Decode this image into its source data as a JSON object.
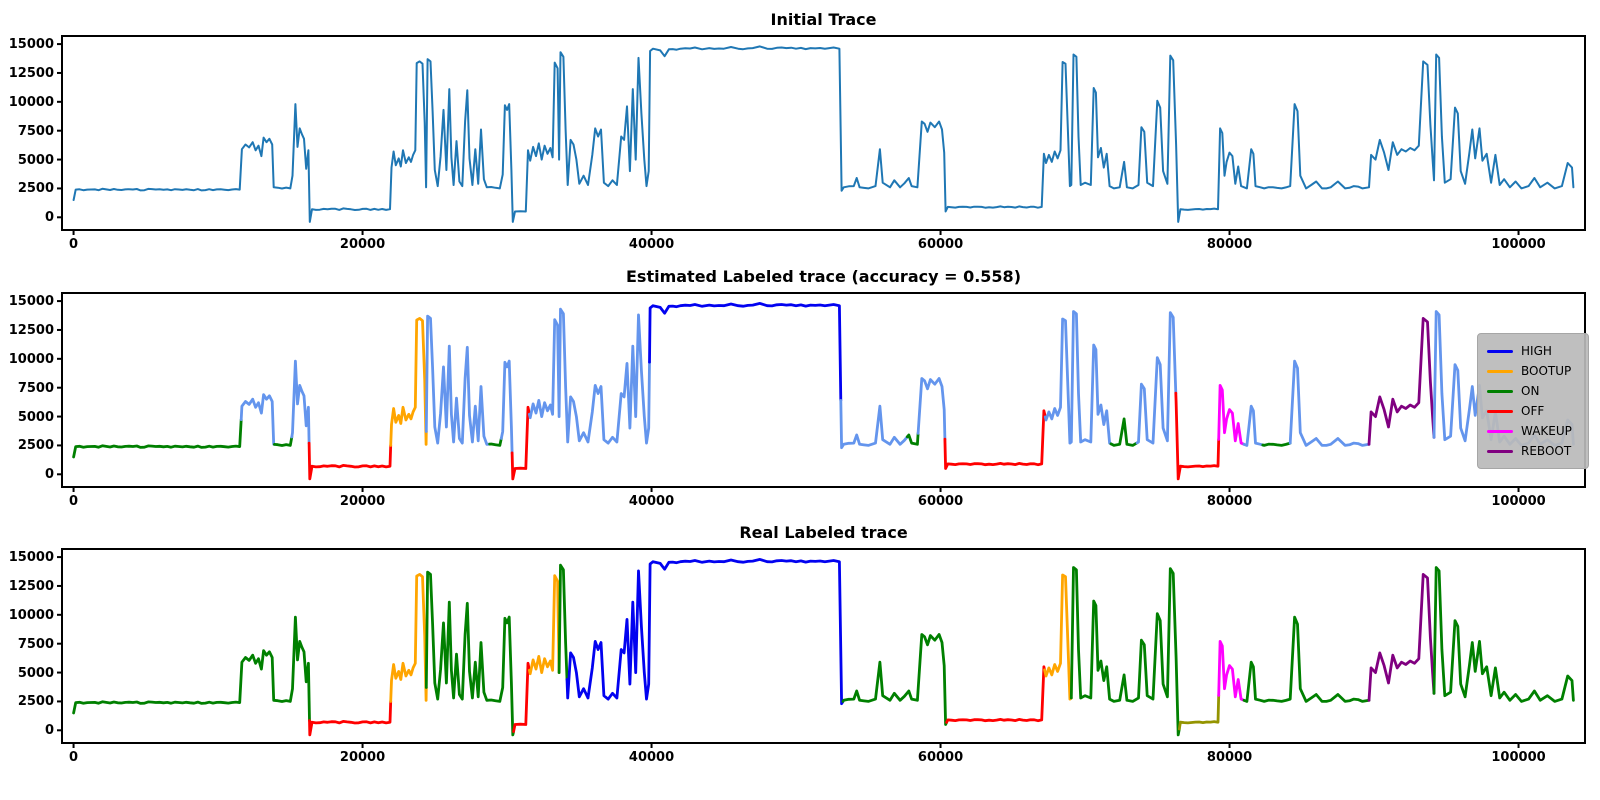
{
  "figure": {
    "background": "#ffffff"
  },
  "chart_data": {
    "type": "line",
    "plots": [
      {
        "title": "Initial Trace",
        "mode": "single",
        "color": "#1f77b4",
        "line_width": 2.0
      },
      {
        "title": "Estimated Labeled trace (accuracy = 0.558)",
        "mode": "segments",
        "line_width": 2.8,
        "accuracy": 0.558,
        "segments": [
          [
            0,
            11600,
            "ON"
          ],
          [
            11600,
            13900,
            "UNLABELED"
          ],
          [
            13900,
            15100,
            "ON"
          ],
          [
            15100,
            16300,
            "UNLABELED"
          ],
          [
            16300,
            21950,
            "OFF"
          ],
          [
            21950,
            24410,
            "BOOTUP"
          ],
          [
            24410,
            28800,
            "UNLABELED"
          ],
          [
            28800,
            29600,
            "ON"
          ],
          [
            29600,
            30350,
            "UNLABELED"
          ],
          [
            30350,
            31550,
            "OFF"
          ],
          [
            31550,
            39855,
            "UNLABELED"
          ],
          [
            39855,
            53100,
            "HIGH"
          ],
          [
            53100,
            57700,
            "UNLABELED"
          ],
          [
            57700,
            58450,
            "ON"
          ],
          [
            58450,
            60300,
            "UNLABELED"
          ],
          [
            60300,
            67250,
            "OFF"
          ],
          [
            67250,
            71800,
            "UNLABELED"
          ],
          [
            71800,
            73600,
            "ON"
          ],
          [
            73600,
            76280,
            "UNLABELED"
          ],
          [
            76280,
            79250,
            "OFF"
          ],
          [
            79250,
            81000,
            "WAKEUP"
          ],
          [
            81000,
            82300,
            "UNLABELED"
          ],
          [
            82300,
            84200,
            "ON"
          ],
          [
            84200,
            89650,
            "UNLABELED"
          ],
          [
            89650,
            94150,
            "REBOOT"
          ],
          [
            94150,
            103800,
            "UNLABELED"
          ]
        ]
      },
      {
        "title": "Real Labeled trace",
        "mode": "segments",
        "line_width": 2.8,
        "segments": [
          [
            0,
            16330,
            "ON"
          ],
          [
            16330,
            21950,
            "OFF"
          ],
          [
            21950,
            24410,
            "BOOTUP"
          ],
          [
            24410,
            30450,
            "ON"
          ],
          [
            30450,
            31550,
            "OFF"
          ],
          [
            31550,
            33600,
            "BOOTUP"
          ],
          [
            33600,
            34150,
            "ON"
          ],
          [
            34150,
            53250,
            "HIGH"
          ],
          [
            53250,
            60420,
            "ON"
          ],
          [
            60420,
            67200,
            "OFF"
          ],
          [
            67200,
            69050,
            "BOOTUP"
          ],
          [
            69050,
            76520,
            "ON"
          ],
          [
            76520,
            79250,
            "OTHER"
          ],
          [
            79250,
            81000,
            "WAKEUP"
          ],
          [
            81000,
            89650,
            "ON"
          ],
          [
            89650,
            94150,
            "REBOOT"
          ],
          [
            94150,
            103800,
            "ON"
          ]
        ]
      }
    ],
    "label_colors": {
      "HIGH": "#0202f0",
      "BOOTUP": "#ffa500",
      "ON": "#008000",
      "OFF": "#ff0000",
      "WAKEUP": "#ff00ff",
      "REBOOT": "#800080",
      "UNLABELED": "#6495ed",
      "OTHER": "#949400"
    },
    "legend": {
      "entries": [
        "HIGH",
        "BOOTUP",
        "ON",
        "OFF",
        "WAKEUP",
        "REBOOT"
      ],
      "position": "right of middle plot"
    },
    "xlim": [
      -800,
      104600
    ],
    "ylim": [
      -1100,
      15700
    ],
    "x_ticks": [
      0,
      20000,
      40000,
      60000,
      80000,
      100000
    ],
    "y_ticks": [
      0,
      2500,
      5000,
      7500,
      10000,
      12500,
      15000
    ],
    "grid": false,
    "noise": {
      "amplitude": 70,
      "step": 260,
      "max_edge": 1300
    },
    "waveform": [
      [
        0,
        1500
      ],
      [
        150,
        2400
      ],
      [
        11500,
        2400
      ],
      [
        11650,
        5900
      ],
      [
        11900,
        6300
      ],
      [
        12150,
        6050
      ],
      [
        12400,
        6500
      ],
      [
        12600,
        5800
      ],
      [
        12800,
        6200
      ],
      [
        13000,
        5300
      ],
      [
        13150,
        6900
      ],
      [
        13350,
        6500
      ],
      [
        13550,
        6800
      ],
      [
        13750,
        6300
      ],
      [
        13850,
        2600
      ],
      [
        15000,
        2500
      ],
      [
        15150,
        3600
      ],
      [
        15350,
        9800
      ],
      [
        15500,
        6100
      ],
      [
        15650,
        7700
      ],
      [
        15800,
        7200
      ],
      [
        15950,
        6800
      ],
      [
        16100,
        4200
      ],
      [
        16250,
        5800
      ],
      [
        16350,
        -400
      ],
      [
        16500,
        700
      ],
      [
        21900,
        700
      ],
      [
        22000,
        4300
      ],
      [
        22150,
        5700
      ],
      [
        22300,
        4500
      ],
      [
        22500,
        5100
      ],
      [
        22650,
        4400
      ],
      [
        22800,
        5800
      ],
      [
        23000,
        4700
      ],
      [
        23200,
        5200
      ],
      [
        23350,
        4800
      ],
      [
        23500,
        5400
      ],
      [
        23650,
        5800
      ],
      [
        23750,
        13350
      ],
      [
        23950,
        13500
      ],
      [
        24150,
        13300
      ],
      [
        24300,
        8200
      ],
      [
        24400,
        2600
      ],
      [
        24500,
        13700
      ],
      [
        24700,
        13500
      ],
      [
        24850,
        9200
      ],
      [
        25000,
        4100
      ],
      [
        25200,
        2700
      ],
      [
        25400,
        5300
      ],
      [
        25600,
        9300
      ],
      [
        25800,
        4100
      ],
      [
        26000,
        11100
      ],
      [
        26150,
        5200
      ],
      [
        26300,
        2800
      ],
      [
        26500,
        6600
      ],
      [
        26700,
        3100
      ],
      [
        26900,
        2700
      ],
      [
        27100,
        8300
      ],
      [
        27250,
        11000
      ],
      [
        27400,
        5100
      ],
      [
        27600,
        2800
      ],
      [
        27800,
        5900
      ],
      [
        28000,
        2900
      ],
      [
        28200,
        7600
      ],
      [
        28400,
        3300
      ],
      [
        28600,
        2600
      ],
      [
        29500,
        2500
      ],
      [
        29700,
        3700
      ],
      [
        29850,
        9700
      ],
      [
        30000,
        9300
      ],
      [
        30150,
        9800
      ],
      [
        30300,
        4100
      ],
      [
        30400,
        -400
      ],
      [
        30550,
        500
      ],
      [
        31300,
        500
      ],
      [
        31450,
        5800
      ],
      [
        31600,
        4900
      ],
      [
        31800,
        6100
      ],
      [
        32000,
        5300
      ],
      [
        32200,
        6400
      ],
      [
        32400,
        5000
      ],
      [
        32600,
        6200
      ],
      [
        32800,
        5500
      ],
      [
        33000,
        6000
      ],
      [
        33150,
        5200
      ],
      [
        33300,
        13400
      ],
      [
        33500,
        12900
      ],
      [
        33600,
        5000
      ],
      [
        33700,
        14300
      ],
      [
        33900,
        13900
      ],
      [
        34050,
        7600
      ],
      [
        34200,
        2800
      ],
      [
        34400,
        6700
      ],
      [
        34600,
        6300
      ],
      [
        34800,
        5000
      ],
      [
        35000,
        2900
      ],
      [
        35300,
        3600
      ],
      [
        35600,
        2800
      ],
      [
        35900,
        5400
      ],
      [
        36100,
        7700
      ],
      [
        36300,
        7000
      ],
      [
        36500,
        7600
      ],
      [
        36700,
        3000
      ],
      [
        37000,
        2700
      ],
      [
        37300,
        3200
      ],
      [
        37600,
        2800
      ],
      [
        37900,
        7000
      ],
      [
        38100,
        6700
      ],
      [
        38300,
        9600
      ],
      [
        38500,
        4000
      ],
      [
        38700,
        11100
      ],
      [
        38900,
        5000
      ],
      [
        39100,
        13800
      ],
      [
        39300,
        9000
      ],
      [
        39500,
        5000
      ],
      [
        39650,
        2700
      ],
      [
        39800,
        4000
      ],
      [
        39900,
        14400
      ],
      [
        40100,
        14600
      ],
      [
        40600,
        14450
      ],
      [
        40900,
        13950
      ],
      [
        41200,
        14550
      ],
      [
        42000,
        14600
      ],
      [
        43000,
        14700
      ],
      [
        43500,
        14550
      ],
      [
        44000,
        14650
      ],
      [
        45000,
        14600
      ],
      [
        45500,
        14750
      ],
      [
        46000,
        14600
      ],
      [
        47000,
        14650
      ],
      [
        47500,
        14800
      ],
      [
        48000,
        14600
      ],
      [
        49000,
        14700
      ],
      [
        50000,
        14600
      ],
      [
        51000,
        14650
      ],
      [
        52000,
        14600
      ],
      [
        52600,
        14700
      ],
      [
        53000,
        14600
      ],
      [
        53150,
        2300
      ],
      [
        53300,
        2600
      ],
      [
        54000,
        2700
      ],
      [
        54200,
        3400
      ],
      [
        54400,
        2600
      ],
      [
        55000,
        2500
      ],
      [
        55500,
        2700
      ],
      [
        55800,
        5900
      ],
      [
        56000,
        3000
      ],
      [
        56500,
        2600
      ],
      [
        56800,
        3200
      ],
      [
        57200,
        2600
      ],
      [
        57800,
        3400
      ],
      [
        58000,
        2700
      ],
      [
        58400,
        2600
      ],
      [
        58700,
        8300
      ],
      [
        58900,
        8100
      ],
      [
        59100,
        7400
      ],
      [
        59300,
        8200
      ],
      [
        59600,
        7800
      ],
      [
        59900,
        8300
      ],
      [
        60100,
        7600
      ],
      [
        60250,
        5600
      ],
      [
        60350,
        500
      ],
      [
        60500,
        900
      ],
      [
        67000,
        900
      ],
      [
        67150,
        5500
      ],
      [
        67300,
        4700
      ],
      [
        67500,
        5400
      ],
      [
        67700,
        4800
      ],
      [
        67900,
        5700
      ],
      [
        68100,
        5100
      ],
      [
        68300,
        5800
      ],
      [
        68450,
        13450
      ],
      [
        68650,
        13300
      ],
      [
        68800,
        8000
      ],
      [
        68950,
        2700
      ],
      [
        69050,
        2800
      ],
      [
        69200,
        14100
      ],
      [
        69400,
        13900
      ],
      [
        69550,
        7000
      ],
      [
        69700,
        2800
      ],
      [
        70000,
        3000
      ],
      [
        70400,
        2800
      ],
      [
        70600,
        11200
      ],
      [
        70750,
        10800
      ],
      [
        70900,
        5200
      ],
      [
        71100,
        6000
      ],
      [
        71300,
        4300
      ],
      [
        71500,
        5500
      ],
      [
        71700,
        2700
      ],
      [
        72000,
        2500
      ],
      [
        72400,
        2600
      ],
      [
        72700,
        4800
      ],
      [
        72900,
        2600
      ],
      [
        73300,
        2500
      ],
      [
        73700,
        2800
      ],
      [
        73900,
        7800
      ],
      [
        74100,
        7400
      ],
      [
        74300,
        3000
      ],
      [
        74700,
        2700
      ],
      [
        75000,
        10100
      ],
      [
        75200,
        9500
      ],
      [
        75400,
        4000
      ],
      [
        75700,
        2900
      ],
      [
        75900,
        14000
      ],
      [
        76100,
        13600
      ],
      [
        76300,
        6300
      ],
      [
        76450,
        -400
      ],
      [
        76600,
        700
      ],
      [
        79200,
        700
      ],
      [
        79350,
        7700
      ],
      [
        79500,
        7300
      ],
      [
        79650,
        3600
      ],
      [
        79800,
        4800
      ],
      [
        80000,
        5600
      ],
      [
        80200,
        5300
      ],
      [
        80400,
        2900
      ],
      [
        80600,
        4400
      ],
      [
        80800,
        2700
      ],
      [
        81200,
        2500
      ],
      [
        81500,
        5900
      ],
      [
        81650,
        5500
      ],
      [
        81800,
        2700
      ],
      [
        82400,
        2500
      ],
      [
        83000,
        2600
      ],
      [
        83600,
        2500
      ],
      [
        84200,
        2700
      ],
      [
        84500,
        9800
      ],
      [
        84700,
        9200
      ],
      [
        84900,
        3600
      ],
      [
        85300,
        2500
      ],
      [
        86000,
        3100
      ],
      [
        86400,
        2500
      ],
      [
        87000,
        2600
      ],
      [
        87500,
        3100
      ],
      [
        88000,
        2500
      ],
      [
        88600,
        2700
      ],
      [
        89200,
        2500
      ],
      [
        89650,
        2600
      ],
      [
        89800,
        5400
      ],
      [
        90100,
        5000
      ],
      [
        90400,
        6700
      ],
      [
        90700,
        5600
      ],
      [
        91000,
        4100
      ],
      [
        91300,
        6500
      ],
      [
        91600,
        5400
      ],
      [
        91900,
        5900
      ],
      [
        92200,
        5700
      ],
      [
        92500,
        6000
      ],
      [
        92800,
        5800
      ],
      [
        93100,
        6200
      ],
      [
        93400,
        13500
      ],
      [
        93700,
        13200
      ],
      [
        93900,
        8000
      ],
      [
        94050,
        5000
      ],
      [
        94150,
        3200
      ],
      [
        94300,
        14100
      ],
      [
        94500,
        13800
      ],
      [
        94700,
        7000
      ],
      [
        94900,
        3000
      ],
      [
        95300,
        3300
      ],
      [
        95600,
        9500
      ],
      [
        95800,
        9000
      ],
      [
        96000,
        4000
      ],
      [
        96300,
        2900
      ],
      [
        96600,
        5600
      ],
      [
        96800,
        7600
      ],
      [
        97000,
        5100
      ],
      [
        97300,
        7700
      ],
      [
        97500,
        4900
      ],
      [
        97800,
        5500
      ],
      [
        98100,
        3000
      ],
      [
        98400,
        5400
      ],
      [
        98700,
        2800
      ],
      [
        99000,
        3300
      ],
      [
        99400,
        2600
      ],
      [
        99800,
        3100
      ],
      [
        100200,
        2500
      ],
      [
        100700,
        2700
      ],
      [
        101100,
        3400
      ],
      [
        101500,
        2600
      ],
      [
        102000,
        3000
      ],
      [
        102500,
        2500
      ],
      [
        103000,
        2700
      ],
      [
        103400,
        4700
      ],
      [
        103700,
        4300
      ],
      [
        103800,
        2600
      ]
    ]
  }
}
